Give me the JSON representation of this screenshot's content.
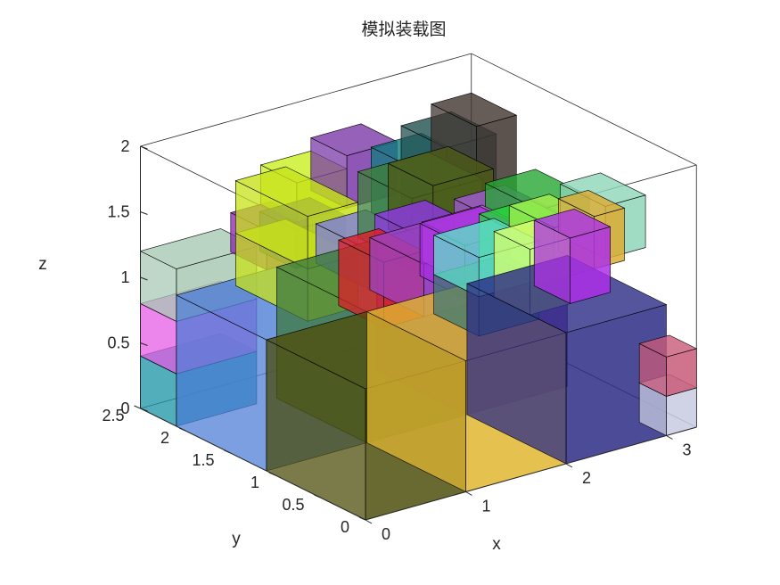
{
  "chart_data": {
    "type": "3d-box-packing",
    "title": "模拟装载图",
    "xlabel": "x",
    "ylabel": "y",
    "zlabel": "z",
    "xlim": [
      0,
      3.3
    ],
    "ylim": [
      0,
      2.5
    ],
    "zlim": [
      0,
      2
    ],
    "xticks": [
      "0",
      "1",
      "2",
      "3"
    ],
    "yticks": [
      "0",
      "0.5",
      "1",
      "1.5",
      "2",
      "2.5"
    ],
    "zticks": [
      "0",
      "0.5",
      "1",
      "1.5",
      "2"
    ],
    "face_alpha": 0.8,
    "boxes": [
      {
        "x": [
          0.0,
          0.8
        ],
        "y": [
          2.1,
          2.5
        ],
        "z": [
          0.0,
          0.4
        ],
        "color": "#1a93a6"
      },
      {
        "x": [
          0.0,
          0.8
        ],
        "y": [
          2.1,
          2.5
        ],
        "z": [
          0.4,
          0.8
        ],
        "color": "#e55ee6"
      },
      {
        "x": [
          0.0,
          0.8
        ],
        "y": [
          2.1,
          2.5
        ],
        "z": [
          0.8,
          1.2
        ],
        "color": "#a9c9b5"
      },
      {
        "x": [
          0.0,
          1.0
        ],
        "y": [
          1.1,
          2.1
        ],
        "z": [
          0.0,
          1.0
        ],
        "color": "#4f7fd6"
      },
      {
        "x": [
          0.0,
          1.0
        ],
        "y": [
          0.0,
          1.1
        ],
        "z": [
          0.0,
          1.0
        ],
        "color": "#4f4f0e"
      },
      {
        "x": [
          1.0,
          2.0
        ],
        "y": [
          0.0,
          1.1
        ],
        "z": [
          0.0,
          1.0
        ],
        "color": "#e0b630"
      },
      {
        "x": [
          2.0,
          3.0
        ],
        "y": [
          0.0,
          1.1
        ],
        "z": [
          0.0,
          1.0
        ],
        "color": "#2b2b86"
      },
      {
        "x": [
          3.0,
          3.3
        ],
        "y": [
          0.0,
          0.3
        ],
        "z": [
          0.0,
          0.3
        ],
        "color": "#c8cbe0"
      },
      {
        "x": [
          3.0,
          3.3
        ],
        "y": [
          0.0,
          0.3
        ],
        "z": [
          0.3,
          0.6
        ],
        "color": "#c85a78"
      },
      {
        "x": [
          1.0,
          2.0
        ],
        "y": [
          1.1,
          2.1
        ],
        "z": [
          0.0,
          1.0
        ],
        "color": "#3d7a3d"
      },
      {
        "x": [
          2.0,
          3.0
        ],
        "y": [
          1.1,
          2.1
        ],
        "z": [
          0.0,
          1.0
        ],
        "color": "#7d3aa8"
      },
      {
        "x": [
          0.5,
          1.0
        ],
        "y": [
          1.2,
          2.0
        ],
        "z": [
          1.0,
          1.4
        ],
        "color": "#c7e21a"
      },
      {
        "x": [
          0.5,
          1.0
        ],
        "y": [
          1.2,
          2.0
        ],
        "z": [
          1.4,
          1.8
        ],
        "color": "#c7e21a"
      },
      {
        "x": [
          0.9,
          1.3
        ],
        "y": [
          0.8,
          1.3
        ],
        "z": [
          1.0,
          1.5
        ],
        "color": "#dc1e28"
      },
      {
        "x": [
          1.3,
          1.8
        ],
        "y": [
          0.8,
          1.4
        ],
        "z": [
          1.0,
          1.4
        ],
        "color": "#9b44c4"
      },
      {
        "x": [
          1.8,
          2.4
        ],
        "y": [
          0.9,
          1.4
        ],
        "z": [
          1.0,
          1.4
        ],
        "color": "#a52ee0"
      },
      {
        "x": [
          1.4,
          2.0
        ],
        "y": [
          0.3,
          0.8
        ],
        "z": [
          1.0,
          1.3
        ],
        "color": "#3f7a72"
      },
      {
        "x": [
          1.4,
          2.0
        ],
        "y": [
          0.3,
          0.8
        ],
        "z": [
          1.3,
          1.6
        ],
        "color": "#5de0c9"
      },
      {
        "x": [
          2.0,
          2.4
        ],
        "y": [
          0.4,
          0.8
        ],
        "z": [
          1.0,
          1.5
        ],
        "color": "#d7ff6e"
      },
      {
        "x": [
          2.4,
          2.8
        ],
        "y": [
          0.4,
          0.8
        ],
        "z": [
          1.0,
          1.5
        ],
        "color": "#ad2fe8"
      },
      {
        "x": [
          1.3,
          1.8
        ],
        "y": [
          1.4,
          2.0
        ],
        "z": [
          1.0,
          1.3
        ],
        "color": "#7d7ddc"
      },
      {
        "x": [
          1.8,
          2.3
        ],
        "y": [
          1.4,
          1.9
        ],
        "z": [
          1.0,
          1.3
        ],
        "color": "#8f37e6"
      },
      {
        "x": [
          1.1,
          1.6
        ],
        "y": [
          2.0,
          2.4
        ],
        "z": [
          1.0,
          1.3
        ],
        "color": "#3b2f9e"
      },
      {
        "x": [
          0.9,
          1.3
        ],
        "y": [
          2.1,
          2.5
        ],
        "z": [
          1.0,
          1.3
        ],
        "color": "#8a1fb5"
      },
      {
        "x": [
          1.2,
          1.7
        ],
        "y": [
          2.1,
          2.5
        ],
        "z": [
          1.3,
          1.6
        ],
        "color": "#c8ef1e"
      },
      {
        "x": [
          1.7,
          2.2
        ],
        "y": [
          2.1,
          2.5
        ],
        "z": [
          1.3,
          1.7
        ],
        "color": "#7a3aa8"
      },
      {
        "x": [
          1.9,
          2.6
        ],
        "y": [
          1.6,
          2.2
        ],
        "z": [
          1.0,
          1.5
        ],
        "color": "#3f7f3a"
      },
      {
        "x": [
          2.2,
          2.8
        ],
        "y": [
          1.7,
          2.2
        ],
        "z": [
          1.0,
          1.5
        ],
        "color": "#4f5a18"
      },
      {
        "x": [
          2.3,
          2.8
        ],
        "y": [
          1.9,
          2.5
        ],
        "z": [
          1.0,
          1.5
        ],
        "color": "#127b80"
      },
      {
        "x": [
          2.6,
          3.1
        ],
        "y": [
          2.0,
          2.5
        ],
        "z": [
          1.0,
          1.6
        ],
        "color": "#214f4f"
      },
      {
        "x": [
          2.9,
          3.3
        ],
        "y": [
          2.0,
          2.5
        ],
        "z": [
          1.0,
          1.7
        ],
        "color": "#403530"
      },
      {
        "x": [
          2.0,
          2.6
        ],
        "y": [
          1.0,
          1.6
        ],
        "z": [
          1.0,
          1.3
        ],
        "color": "#c261d4"
      },
      {
        "x": [
          2.5,
          3.0
        ],
        "y": [
          1.2,
          1.8
        ],
        "z": [
          1.0,
          1.3
        ],
        "color": "#a25ad8"
      },
      {
        "x": [
          2.9,
          3.4
        ],
        "y": [
          1.3,
          1.9
        ],
        "z": [
          1.0,
          1.3
        ],
        "color": "#25a832"
      },
      {
        "x": [
          2.3,
          2.8
        ],
        "y": [
          0.8,
          1.3
        ],
        "z": [
          1.0,
          1.4
        ],
        "color": "#23d83a"
      },
      {
        "x": [
          2.6,
          3.0
        ],
        "y": [
          0.8,
          1.3
        ],
        "z": [
          1.0,
          1.4
        ],
        "color": "#a6f050"
      },
      {
        "x": [
          3.0,
          3.3
        ],
        "y": [
          0.8,
          1.2
        ],
        "z": [
          1.0,
          1.4
        ],
        "color": "#dcab32"
      },
      {
        "x": [
          3.2,
          3.6
        ],
        "y": [
          0.9,
          1.4
        ],
        "z": [
          1.0,
          1.4
        ],
        "color": "#8fd6b8"
      }
    ]
  }
}
